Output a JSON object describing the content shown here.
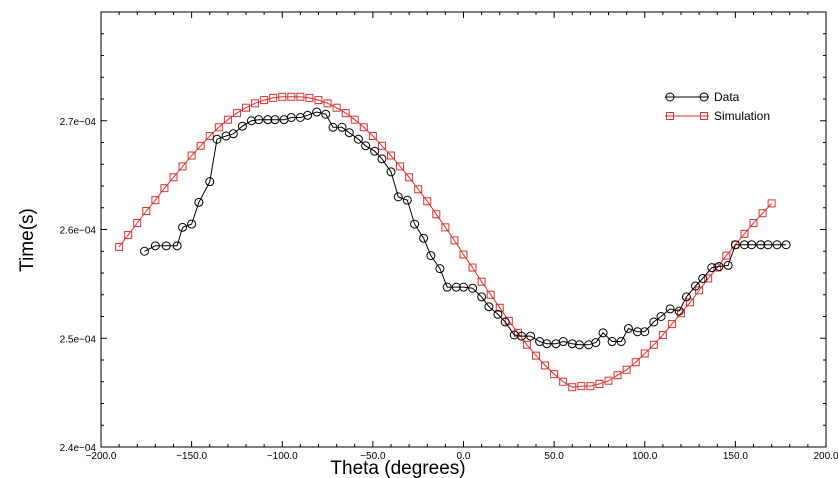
{
  "chart_data": {
    "type": "line",
    "title": "",
    "xlabel": "Theta (degrees)",
    "ylabel": "Time(s)",
    "xlim": [
      -200,
      200
    ],
    "ylim": [
      0.00024,
      0.00028
    ],
    "x_tick_labels": [
      "−200.0",
      "−150.0",
      "−100.0",
      "−50.0",
      "0.0",
      "50.0",
      "100.0",
      "150.0",
      "200.0"
    ],
    "x_ticks": [
      -200,
      -150,
      -100,
      -50,
      0,
      50,
      100,
      150,
      200
    ],
    "y_tick_labels": [
      "2.4e−04",
      "2.5e−04",
      "2.6e−04",
      "2.7e−04"
    ],
    "y_ticks": [
      0.00024,
      0.00025,
      0.00026,
      0.00027
    ],
    "grid": false,
    "legend_position": "top-right",
    "series": [
      {
        "name": "Data",
        "color": "#000000",
        "marker": "circle",
        "x": [
          -176,
          -170,
          -164,
          -158,
          -155,
          -150,
          -146,
          -140,
          -136,
          -131,
          -127,
          -122,
          -117,
          -113,
          -108,
          -104,
          -99,
          -95,
          -90,
          -86,
          -81,
          -76,
          -72,
          -67,
          -63,
          -58,
          -54,
          -49,
          -45,
          -40,
          -36,
          -31,
          -27,
          -22,
          -18,
          -13,
          -9,
          -4,
          0,
          5,
          10,
          14,
          19,
          23,
          28,
          32,
          37,
          42,
          46,
          51,
          55,
          60,
          64,
          69,
          73,
          77,
          82,
          87,
          91,
          96,
          100,
          105,
          109,
          114,
          119,
          123,
          128,
          132,
          137,
          141,
          146,
          150,
          155,
          159,
          164,
          168,
          173,
          178
        ],
        "y": [
          0.000258,
          0.0002585,
          0.0002585,
          0.0002585,
          0.0002602,
          0.0002605,
          0.0002625,
          0.0002644,
          0.0002683,
          0.0002686,
          0.0002688,
          0.0002695,
          0.00027,
          0.0002701,
          0.0002701,
          0.0002701,
          0.0002701,
          0.0002703,
          0.0002703,
          0.0002705,
          0.0002708,
          0.0002706,
          0.0002694,
          0.0002694,
          0.0002689,
          0.0002683,
          0.0002677,
          0.0002672,
          0.0002665,
          0.0002653,
          0.000263,
          0.0002627,
          0.0002605,
          0.0002592,
          0.0002576,
          0.0002564,
          0.0002547,
          0.0002547,
          0.0002547,
          0.0002546,
          0.0002538,
          0.0002529,
          0.0002522,
          0.0002515,
          0.0002503,
          0.0002502,
          0.0002502,
          0.0002497,
          0.0002495,
          0.0002495,
          0.0002497,
          0.0002495,
          0.0002494,
          0.0002494,
          0.0002496,
          0.0002505,
          0.0002497,
          0.0002497,
          0.0002509,
          0.0002506,
          0.0002506,
          0.0002515,
          0.000252,
          0.0002527,
          0.0002525,
          0.0002538,
          0.0002548,
          0.0002555,
          0.0002565,
          0.0002566,
          0.0002567,
          0.0002586,
          0.0002586,
          0.0002586,
          0.0002586,
          0.0002586,
          0.0002586,
          0.0002586
        ]
      },
      {
        "name": "Simulation",
        "color": "#e03030",
        "marker": "square",
        "x_start": -190,
        "x_end": 170,
        "x_step": 5,
        "y": [
          0.0002584,
          0.0002595,
          0.0002606,
          0.0002617,
          0.0002627,
          0.0002638,
          0.0002648,
          0.0002658,
          0.0002668,
          0.0002677,
          0.0002686,
          0.0002694,
          0.0002701,
          0.0002707,
          0.0002712,
          0.0002716,
          0.0002719,
          0.0002721,
          0.0002722,
          0.0002722,
          0.0002722,
          0.0002721,
          0.0002719,
          0.0002716,
          0.0002712,
          0.0002707,
          0.0002701,
          0.0002694,
          0.0002686,
          0.0002677,
          0.0002668,
          0.0002658,
          0.0002648,
          0.0002637,
          0.0002626,
          0.0002614,
          0.0002602,
          0.000259,
          0.0002577,
          0.0002565,
          0.0002552,
          0.000254,
          0.0002528,
          0.0002516,
          0.0002505,
          0.0002494,
          0.0002484,
          0.0002475,
          0.0002467,
          0.000246,
          0.0002455,
          0.0002456,
          0.0002456,
          0.0002458,
          0.0002461,
          0.0002466,
          0.0002471,
          0.0002478,
          0.0002486,
          0.0002494,
          0.0002503,
          0.0002513,
          0.0002523,
          0.0002533,
          0.0002544,
          0.0002555,
          0.0002565,
          0.0002576,
          0.0002586,
          0.0002596,
          0.0002606,
          0.0002615,
          0.0002624
        ]
      }
    ]
  }
}
